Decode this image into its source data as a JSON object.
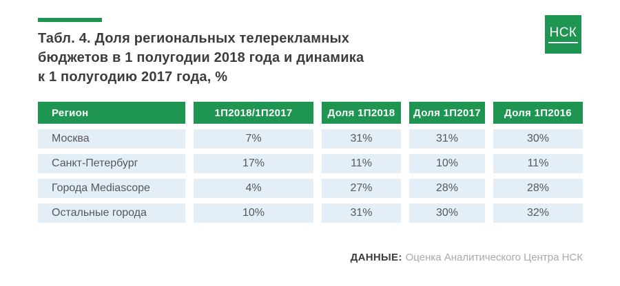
{
  "logo": {
    "text": "НСК"
  },
  "chart_data": {
    "type": "table",
    "title": "Табл. 4. Доля региональных телерекламных бюджетов в 1 полугодии 2018 года и динамика к 1 полугодию 2017 года, %",
    "title_lines": [
      "Табл. 4. Доля региональных телерекламных",
      "бюджетов в 1 полугодии 2018 года и динамика",
      "к 1 полугодию 2017 года, %"
    ],
    "columns": [
      "Регион",
      "1П2018/1П2017",
      "Доля 1П2018",
      "Доля 1П2017",
      "Доля 1П2016"
    ],
    "rows": [
      [
        "Москва",
        "7%",
        "31%",
        "31%",
        "30%"
      ],
      [
        "Санкт-Петербург",
        "17%",
        "11%",
        "10%",
        "11%"
      ],
      [
        "Города Mediascope",
        "4%",
        "27%",
        "28%",
        "28%"
      ],
      [
        "Остальные города",
        "10%",
        "31%",
        "30%",
        "32%"
      ]
    ],
    "source_label": "ДАННЫЕ:",
    "source_text": "Оценка Аналитического Центра НСК"
  },
  "colors": {
    "accent_green": "#1E9551",
    "row_background": "#E4EEF6",
    "title_text": "#3C3C3C",
    "cell_text": "#56575A",
    "header_text": "#FFFFFF",
    "source_text": "#A7A9AC"
  }
}
